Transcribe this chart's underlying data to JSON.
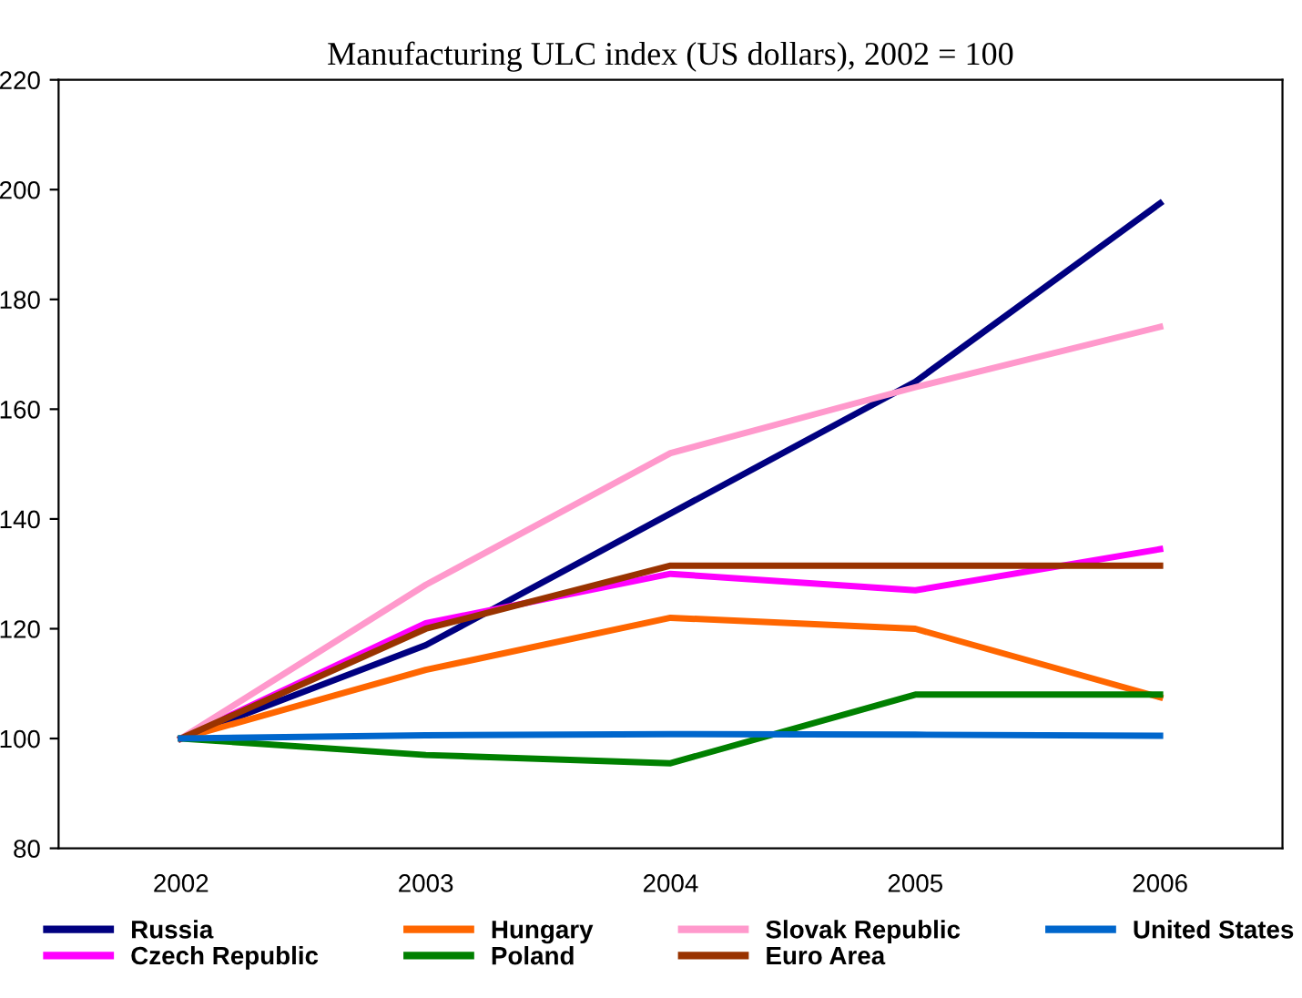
{
  "chart_data": {
    "type": "line",
    "title": "Manufacturing ULC index (US dollars), 2002 = 100",
    "categories": [
      "2002",
      "2003",
      "2004",
      "2005",
      "2006"
    ],
    "series": [
      {
        "name": "Russia",
        "color": "#000080",
        "values": [
          100,
          117,
          141,
          165,
          197.5
        ]
      },
      {
        "name": "Czech Republic",
        "color": "#ff00ff",
        "values": [
          100,
          121,
          130,
          127,
          134.5
        ]
      },
      {
        "name": "Hungary",
        "color": "#ff6600",
        "values": [
          100,
          112.5,
          122,
          120,
          107.5
        ]
      },
      {
        "name": "Poland",
        "color": "#008000",
        "values": [
          100,
          97,
          95.5,
          108,
          108
        ]
      },
      {
        "name": "Slovak Republic",
        "color": "#ff99cc",
        "values": [
          100,
          128,
          152,
          164,
          175
        ]
      },
      {
        "name": "Euro Area",
        "color": "#993300",
        "values": [
          100,
          120,
          131.5,
          131.5,
          131.5
        ]
      },
      {
        "name": "United States",
        "color": "#0066cc",
        "values": [
          100,
          100.6,
          100.8,
          100.7,
          100.5
        ]
      }
    ],
    "ylim": [
      80,
      220
    ],
    "yticks": [
      80,
      100,
      120,
      140,
      160,
      180,
      200,
      220
    ],
    "grid": false,
    "legend": "bottom",
    "marker": "none",
    "line_style": "solid"
  }
}
